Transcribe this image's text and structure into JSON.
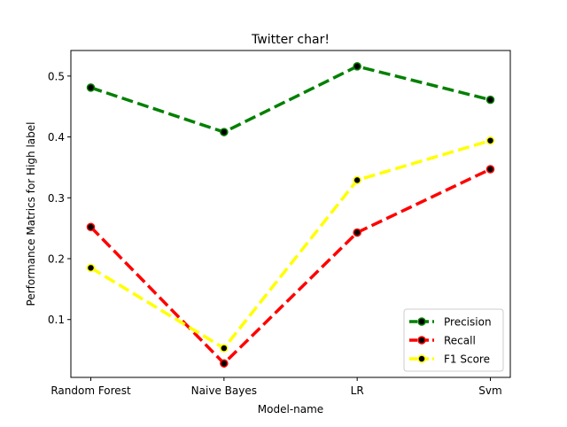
{
  "chart_data": {
    "type": "line",
    "title": "Twitter char!",
    "xlabel": "Model-name",
    "ylabel": "Performance Matrics for High label",
    "categories": [
      "Random Forest",
      "Naive Bayes",
      "LR",
      "Svm"
    ],
    "ylim": [
      0.005,
      0.542
    ],
    "yticks": [
      0.1,
      0.2,
      0.3,
      0.4,
      0.5
    ],
    "ytick_labels": [
      "0.1",
      "0.2",
      "0.3",
      "0.4",
      "0.5"
    ],
    "grid": false,
    "legend_position": "lower-right",
    "series": [
      {
        "name": "Precision",
        "color": "#008000",
        "values": [
          0.481,
          0.408,
          0.516,
          0.461
        ]
      },
      {
        "name": "Recall",
        "color": "#ff0000",
        "values": [
          0.252,
          0.028,
          0.243,
          0.347
        ]
      },
      {
        "name": "F1 Score",
        "color": "#ffff00",
        "values": [
          0.185,
          0.053,
          0.329,
          0.394
        ]
      }
    ],
    "marker_color": "#000000"
  }
}
